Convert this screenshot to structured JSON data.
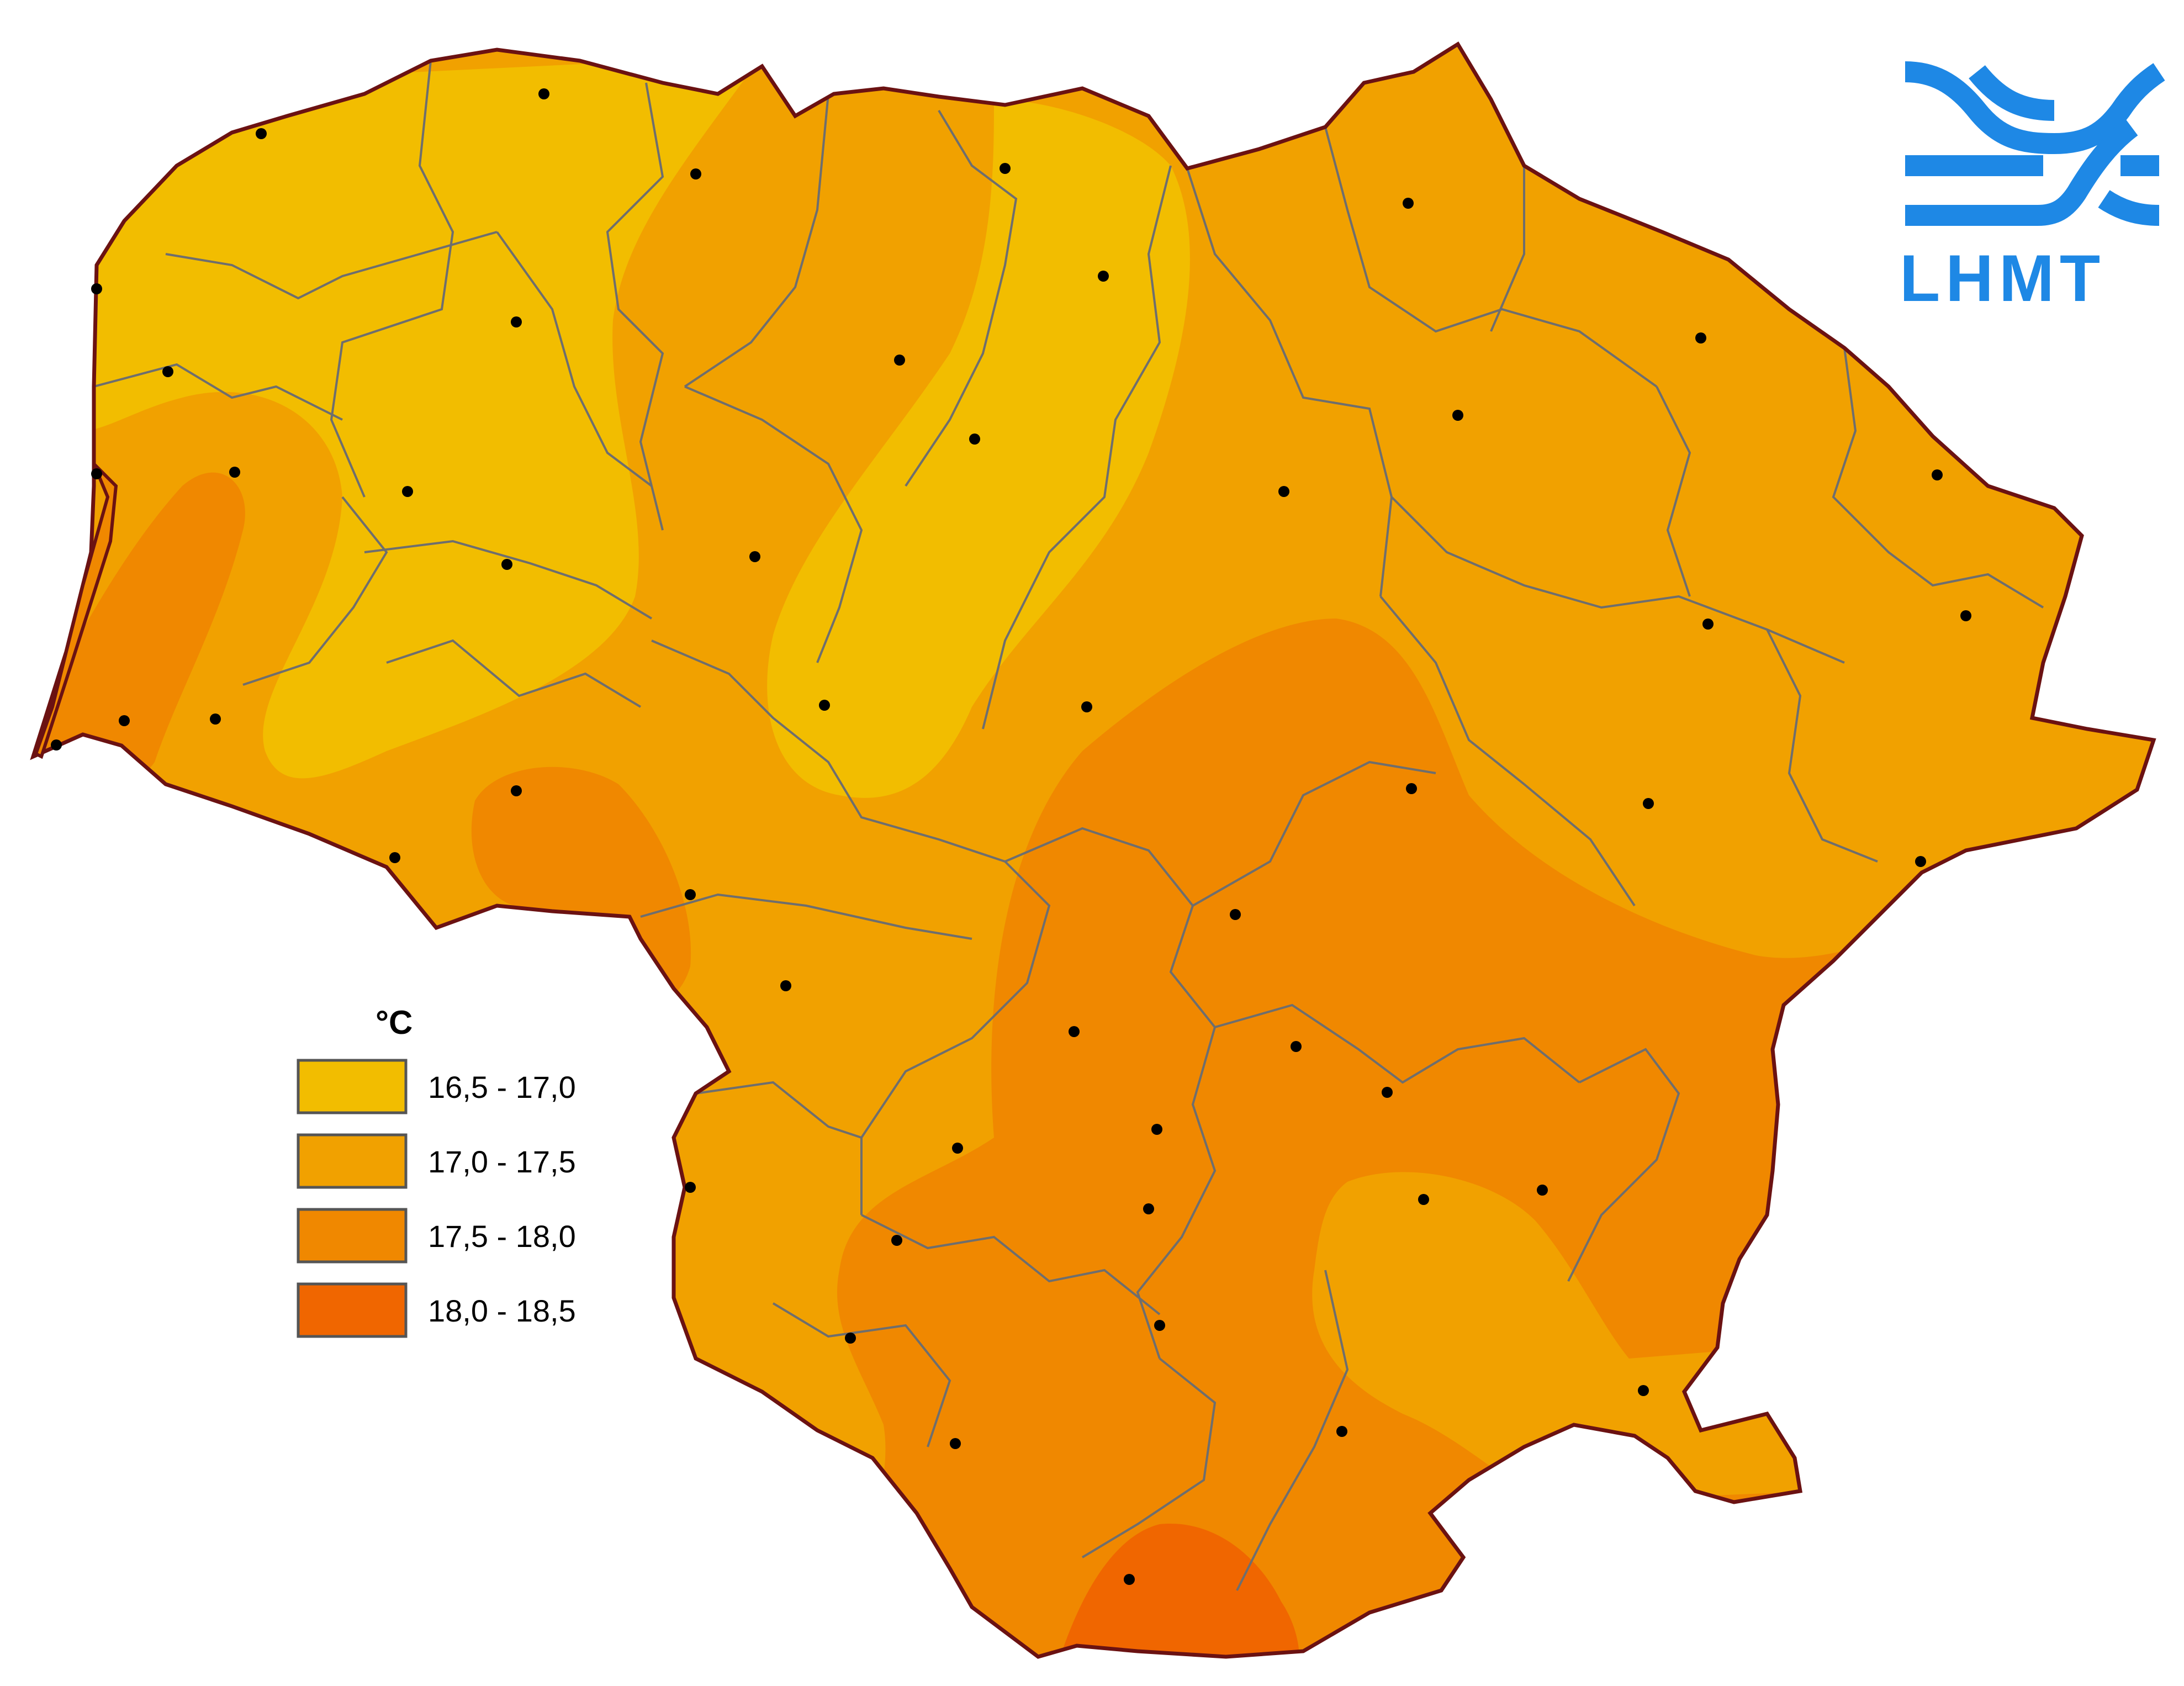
{
  "map": {
    "unit": "°C",
    "colors": {
      "outline": "#6b1212",
      "boundary": "#6e6e6e",
      "station": "#000000"
    },
    "legend": [
      {
        "label": "16,5 - 17,0",
        "color": "#f2bd00"
      },
      {
        "label": "17,0 - 17,5",
        "color": "#f1a100"
      },
      {
        "label": "17,5 - 18,0",
        "color": "#f08800"
      },
      {
        "label": "18,0 - 18,5",
        "color": "#f06600"
      }
    ]
  },
  "logo": {
    "text": "LHMT",
    "color": "#1e88e5",
    "icon": "wave-logo-icon"
  }
}
